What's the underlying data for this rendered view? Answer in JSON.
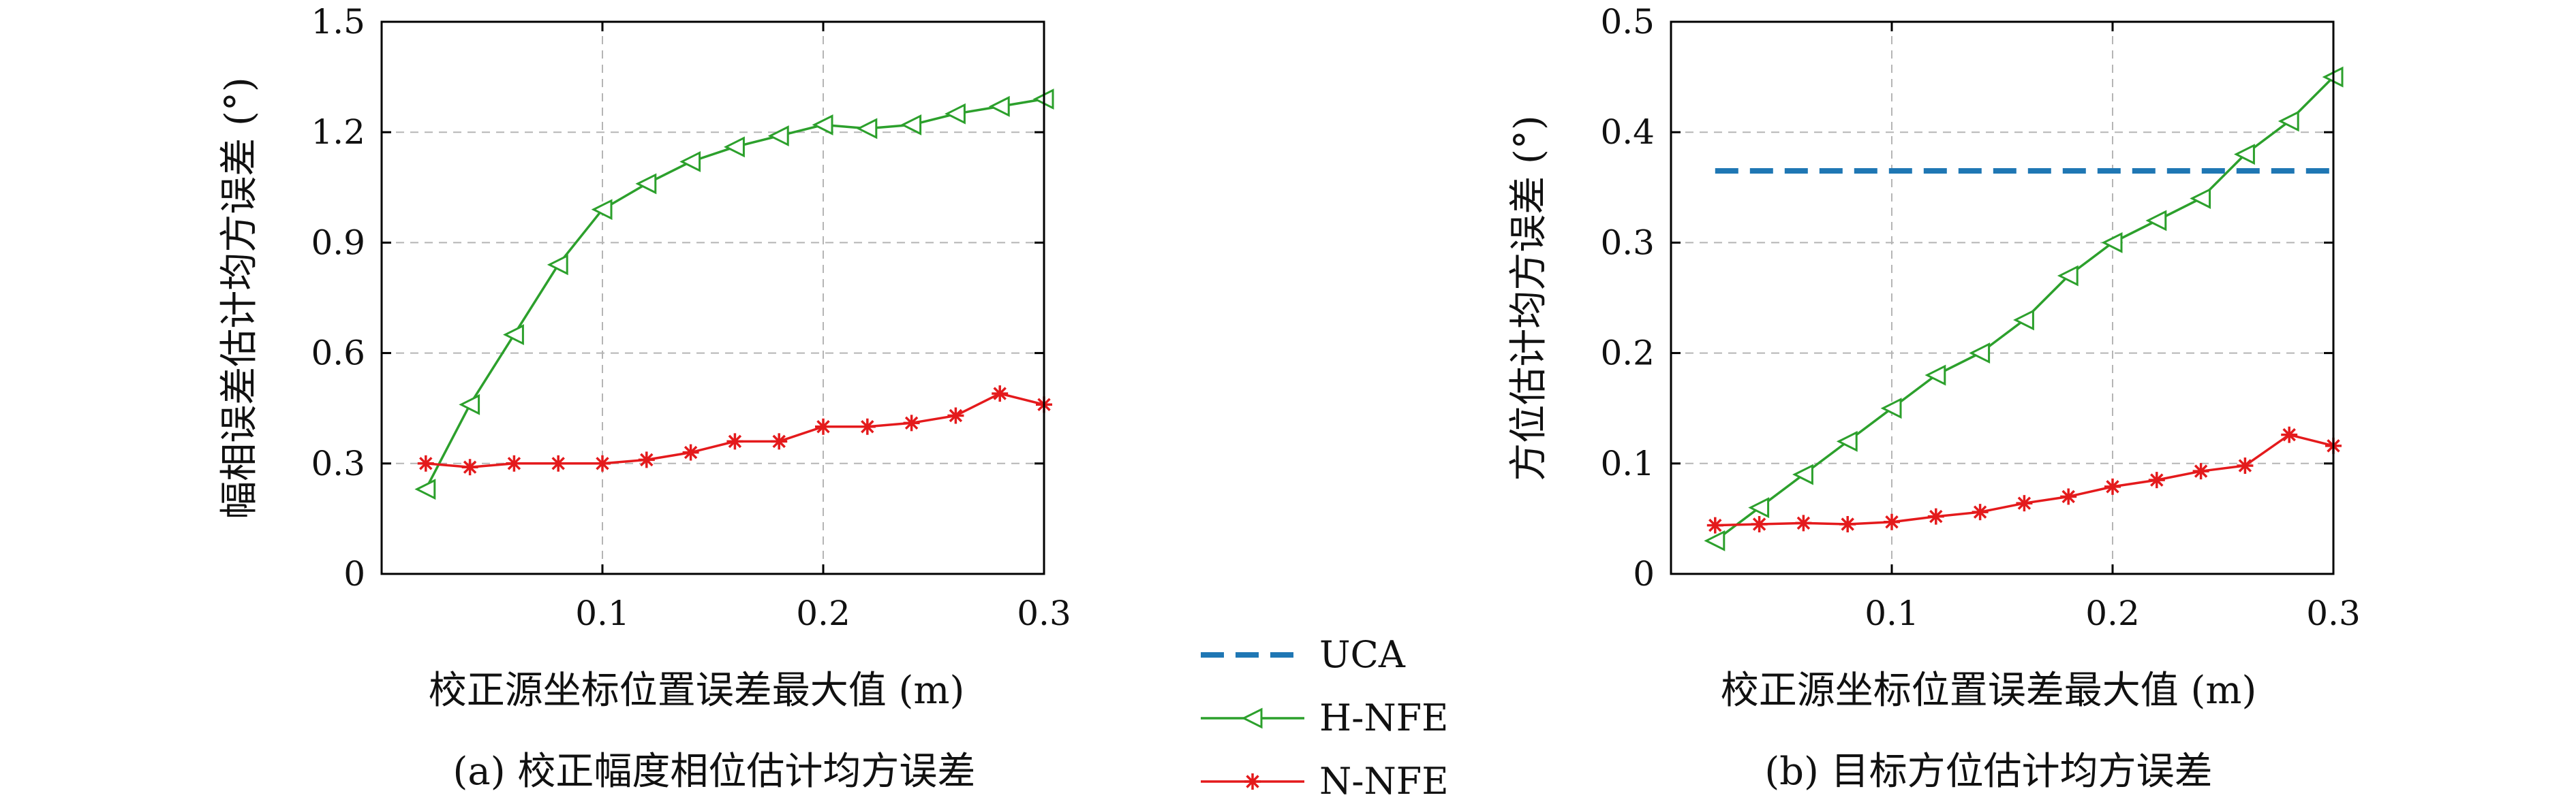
{
  "chart_data": [
    {
      "type": "line",
      "ylabel": "幅相误差估计均方误差 (°)",
      "xlabel": "校正源坐标位置误差最大值 (m)",
      "caption": "(a) 校正幅度相位估计均方误差",
      "xlim": [
        0,
        0.3
      ],
      "ylim": [
        0,
        1.5
      ],
      "xticks": [
        "0.1",
        "0.2",
        "0.3"
      ],
      "yticks": [
        "0",
        "0.3",
        "0.6",
        "0.9",
        "1.2",
        "1.5"
      ],
      "grid": true,
      "x": [
        0.02,
        0.04,
        0.06,
        0.08,
        0.1,
        0.12,
        0.14,
        0.16,
        0.18,
        0.2,
        0.22,
        0.24,
        0.26,
        0.28,
        0.3
      ],
      "series": [
        {
          "name": "H-NFE",
          "color": "#2ca02c",
          "marker": "triangle-left",
          "values": [
            0.23,
            0.46,
            0.65,
            0.84,
            0.99,
            1.06,
            1.12,
            1.16,
            1.19,
            1.22,
            1.21,
            1.22,
            1.25,
            1.27,
            1.29
          ]
        },
        {
          "name": "N-NFE",
          "color": "#e41a1c",
          "marker": "asterisk",
          "values": [
            0.3,
            0.29,
            0.3,
            0.3,
            0.3,
            0.31,
            0.33,
            0.36,
            0.36,
            0.4,
            0.4,
            0.41,
            0.43,
            0.49,
            0.46
          ]
        }
      ]
    },
    {
      "type": "line",
      "ylabel": "方位估计均方误差 (°)",
      "xlabel": "校正源坐标位置误差最大值 (m)",
      "caption": "(b) 目标方位估计均方误差",
      "xlim": [
        0,
        0.3
      ],
      "ylim": [
        0,
        0.5
      ],
      "xticks": [
        "0.1",
        "0.2",
        "0.3"
      ],
      "yticks": [
        "0",
        "0.1",
        "0.2",
        "0.3",
        "0.4",
        "0.5"
      ],
      "grid": true,
      "x": [
        0.02,
        0.04,
        0.06,
        0.08,
        0.1,
        0.12,
        0.14,
        0.16,
        0.18,
        0.2,
        0.22,
        0.24,
        0.26,
        0.28,
        0.3
      ],
      "series": [
        {
          "name": "UCA",
          "color": "#1f77b4",
          "style": "dashed",
          "values": [
            0.365,
            0.365,
            0.365,
            0.365,
            0.365,
            0.365,
            0.365,
            0.365,
            0.365,
            0.365,
            0.365,
            0.365,
            0.365,
            0.365,
            0.365
          ]
        },
        {
          "name": "H-NFE",
          "color": "#2ca02c",
          "marker": "triangle-left",
          "values": [
            0.03,
            0.06,
            0.09,
            0.12,
            0.15,
            0.18,
            0.2,
            0.23,
            0.27,
            0.3,
            0.32,
            0.34,
            0.38,
            0.41,
            0.45
          ]
        },
        {
          "name": "N-NFE",
          "color": "#e41a1c",
          "marker": "asterisk",
          "values": [
            0.044,
            0.045,
            0.046,
            0.045,
            0.047,
            0.052,
            0.056,
            0.064,
            0.07,
            0.079,
            0.085,
            0.093,
            0.098,
            0.126,
            0.116
          ]
        }
      ]
    }
  ],
  "legend": {
    "placement": "bottom-center",
    "entries": [
      {
        "name": "UCA",
        "color": "#1f77b4",
        "style": "dashed"
      },
      {
        "name": "H-NFE",
        "color": "#2ca02c",
        "marker": "triangle-left"
      },
      {
        "name": "N-NFE",
        "color": "#e41a1c",
        "marker": "asterisk"
      }
    ]
  }
}
